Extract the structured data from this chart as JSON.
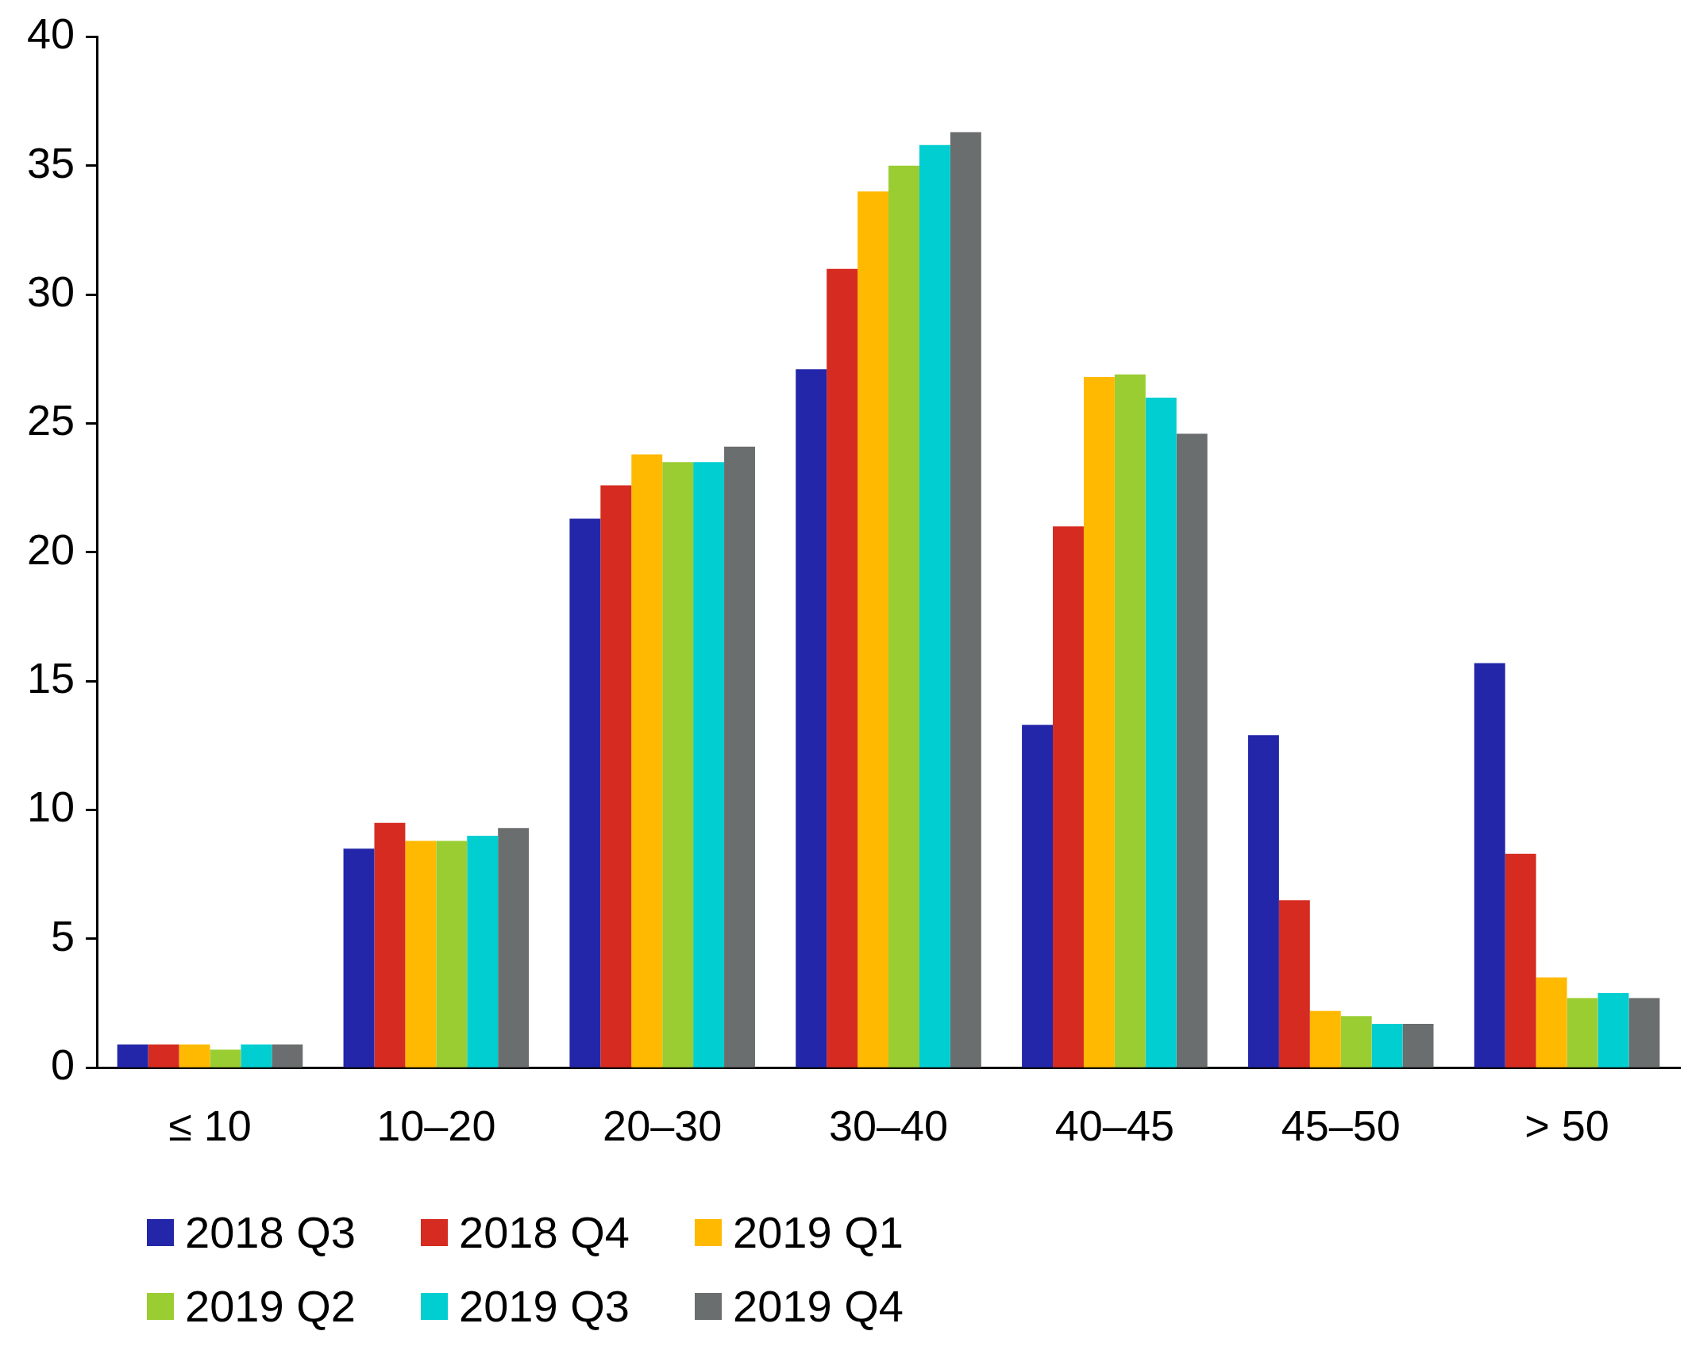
{
  "chart_data": {
    "type": "bar",
    "categories": [
      "≤ 10",
      "10–20",
      "20–30",
      "30–40",
      "40–45",
      "45–50",
      "> 50"
    ],
    "series": [
      {
        "name": "2018 Q3",
        "color": "#2326a8",
        "values": [
          0.9,
          8.5,
          21.3,
          27.1,
          13.3,
          12.9,
          15.7
        ]
      },
      {
        "name": "2018 Q4",
        "color": "#d62b20",
        "values": [
          0.9,
          9.5,
          22.6,
          31.0,
          21.0,
          6.5,
          8.3
        ]
      },
      {
        "name": "2019 Q1",
        "color": "#ffb900",
        "values": [
          0.9,
          8.8,
          23.8,
          34.0,
          26.8,
          2.2,
          3.5
        ]
      },
      {
        "name": "2019 Q2",
        "color": "#9acd32",
        "values": [
          0.7,
          8.8,
          23.5,
          35.0,
          26.9,
          2.0,
          2.7
        ]
      },
      {
        "name": "2019 Q3",
        "color": "#00ced1",
        "values": [
          0.9,
          9.0,
          23.5,
          35.8,
          26.0,
          1.7,
          2.9
        ]
      },
      {
        "name": "2019 Q4",
        "color": "#6b6e6e",
        "values": [
          0.9,
          9.3,
          24.1,
          36.3,
          24.6,
          1.7,
          2.7
        ]
      }
    ],
    "ylim": [
      0,
      40
    ],
    "yticks": [
      0,
      5,
      10,
      15,
      20,
      25,
      30,
      35,
      40
    ],
    "grid": false,
    "legend": "bottom left"
  }
}
